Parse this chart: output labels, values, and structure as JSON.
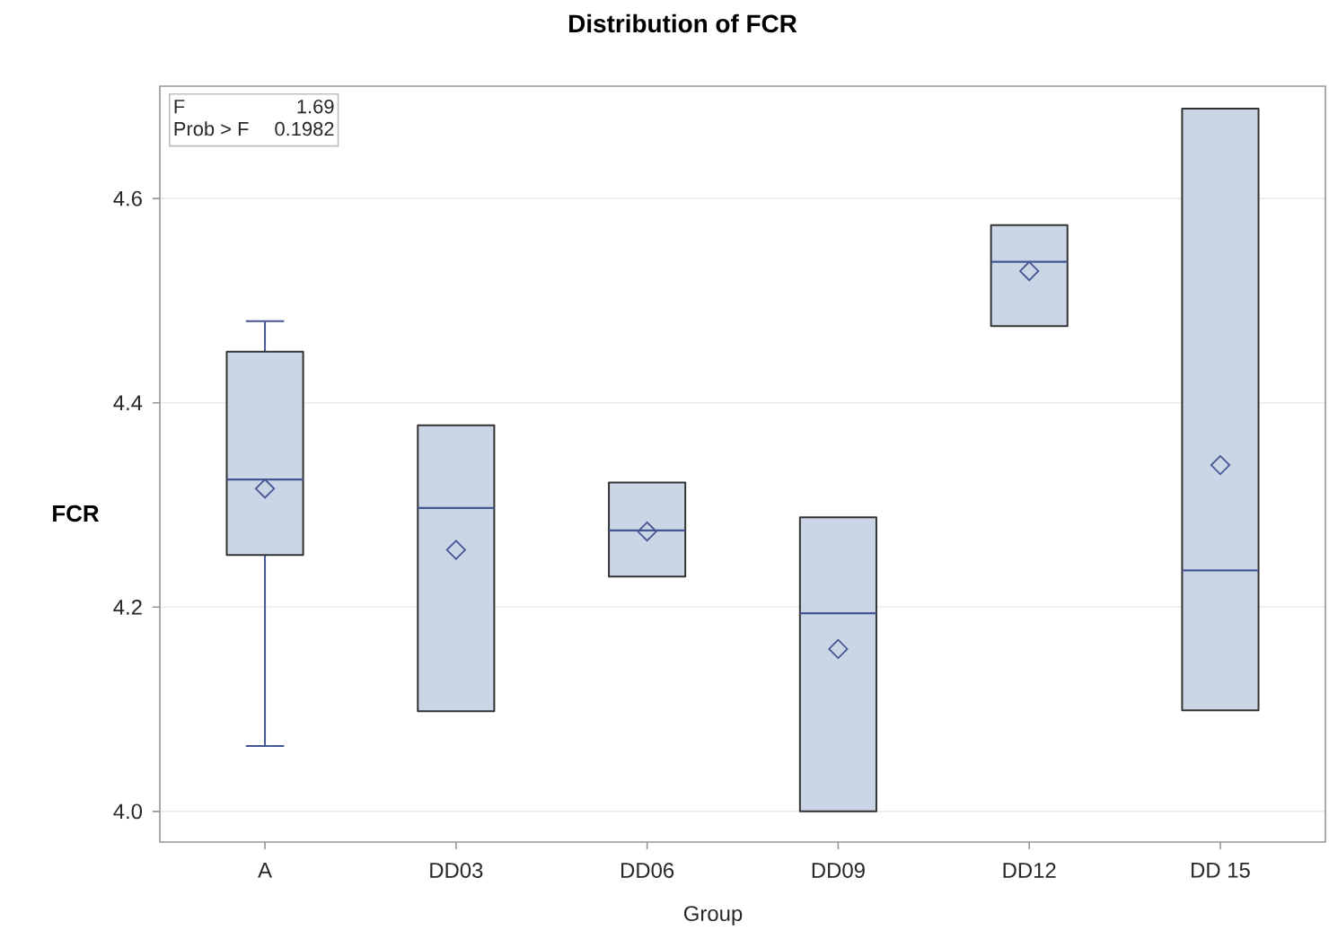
{
  "chart_data": {
    "type": "box",
    "title": "Distribution of FCR",
    "xlabel": "Group",
    "ylabel": "FCR",
    "categories": [
      "A",
      "DD03",
      "DD06",
      "DD09",
      "DD12",
      "DD 15"
    ],
    "boxes": [
      {
        "low": 4.064,
        "q1": 4.251,
        "median": 4.325,
        "q3": 4.45,
        "high": 4.48,
        "mean": 4.316
      },
      {
        "low": 4.098,
        "q1": 4.098,
        "median": 4.297,
        "q3": 4.378,
        "high": 4.378,
        "mean": 4.256
      },
      {
        "low": 4.23,
        "q1": 4.23,
        "median": 4.275,
        "q3": 4.322,
        "high": 4.322,
        "mean": 4.274
      },
      {
        "low": 4.0,
        "q1": 4.0,
        "median": 4.194,
        "q3": 4.288,
        "high": 4.288,
        "mean": 4.159
      },
      {
        "low": 4.475,
        "q1": 4.475,
        "median": 4.538,
        "q3": 4.574,
        "high": 4.574,
        "mean": 4.529
      },
      {
        "low": 4.099,
        "q1": 4.099,
        "median": 4.236,
        "q3": 4.688,
        "high": 4.688,
        "mean": 4.339
      }
    ],
    "color": "#cad5e6",
    "marker": "diamond",
    "grid": "y",
    "ylim": [
      3.97,
      4.71
    ],
    "yticks": [
      {
        "value": 4,
        "label": "4.0"
      },
      4.2,
      4.4,
      4.6
    ],
    "annotations": [
      "F",
      "1.69",
      "Prob > F",
      "0.1982"
    ]
  }
}
